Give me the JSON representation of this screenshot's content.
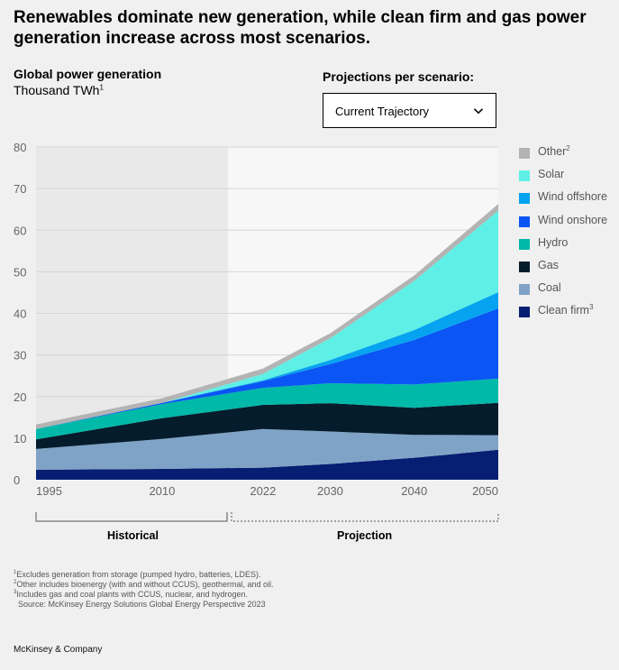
{
  "headline": "Renewables dominate new generation, while clean firm and gas power generation increase across most scenarios.",
  "subtitle": {
    "title": "Global power generation",
    "unit": "Thousand TWh",
    "unit_note": "1"
  },
  "scenario_selector": {
    "label": "Projections per scenario:",
    "selected": "Current Trajectory"
  },
  "periods": {
    "historical": "Historical",
    "projection": "Projection"
  },
  "footnotes": [
    {
      "mark": "1",
      "text": "Excludes generation from storage (pumped hydro, batteries, LDES)."
    },
    {
      "mark": "2",
      "text": "Other includes bioenergy (with and without CCUS), geothermal, and oil."
    },
    {
      "mark": "3",
      "text": "Includes gas and coal plants with CCUS, nuclear, and hydrogen."
    }
  ],
  "source": "Source: McKinsey Energy Solutions Global Energy Perspective 2023",
  "brand": "McKinsey & Company",
  "chart_data": {
    "type": "area",
    "stacked": true,
    "title": "Global power generation",
    "ylabel": "Thousand TWh",
    "x": [
      1995,
      2010,
      2022,
      2030,
      2040,
      2050
    ],
    "xticks": [
      "1995",
      "2010",
      "2022",
      "2030",
      "2040",
      "2050"
    ],
    "ylim": [
      0,
      80
    ],
    "yticks": [
      "0",
      "10",
      "20",
      "30",
      "40",
      "50",
      "60",
      "70",
      "80"
    ],
    "historical_until": 2022,
    "legend_position": "right",
    "series": [
      {
        "name": "Clean firm",
        "note": "3",
        "color": "#061f72",
        "values": [
          2.4,
          2.6,
          2.9,
          3.8,
          5.3,
          7.2
        ]
      },
      {
        "name": "Coal",
        "note": "",
        "color": "#7fa3c6",
        "values": [
          5.0,
          7.2,
          9.3,
          7.8,
          5.5,
          3.5
        ]
      },
      {
        "name": "Gas",
        "note": "",
        "color": "#051c2c",
        "values": [
          2.3,
          5.0,
          5.8,
          6.8,
          6.5,
          7.8
        ]
      },
      {
        "name": "Hydro",
        "note": "",
        "color": "#00b9a8",
        "values": [
          2.5,
          3.4,
          4.1,
          4.8,
          5.6,
          5.8
        ]
      },
      {
        "name": "Wind onshore",
        "note": "",
        "color": "#0b55f4",
        "values": [
          0.0,
          0.3,
          1.6,
          4.6,
          10.7,
          16.9
        ]
      },
      {
        "name": "Wind offshore",
        "note": "",
        "color": "#06a3f0",
        "values": [
          0.0,
          0.0,
          0.2,
          1.0,
          2.4,
          3.9
        ]
      },
      {
        "name": "Solar",
        "note": "",
        "color": "#5ef0e6",
        "values": [
          0.0,
          0.0,
          1.5,
          5.2,
          11.8,
          19.6
        ]
      },
      {
        "name": "Other",
        "note": "2",
        "color": "#b3b3b3",
        "values": [
          1.1,
          1.1,
          1.3,
          1.2,
          1.3,
          1.6
        ]
      }
    ]
  }
}
